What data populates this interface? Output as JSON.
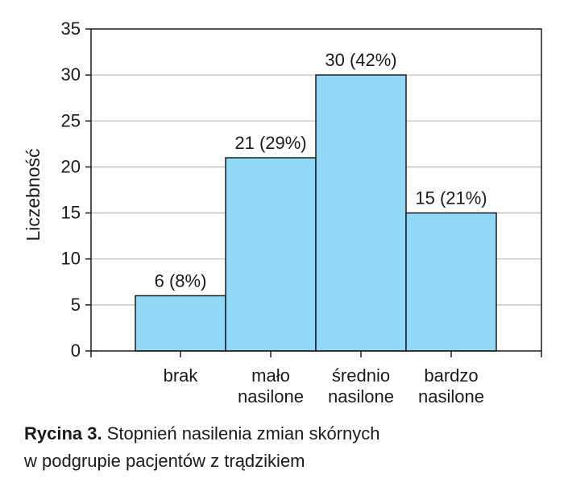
{
  "chart_data": {
    "type": "bar",
    "categories": [
      [
        "brak"
      ],
      [
        "mało",
        "nasilone"
      ],
      [
        "średnio",
        "nasilone"
      ],
      [
        "bardzo",
        "nasilone"
      ]
    ],
    "values": [
      6,
      21,
      30,
      15
    ],
    "data_labels": [
      "6 (8%)",
      "21 (29%)",
      "30 (42%)",
      "15 (21%)"
    ],
    "xlabel": "",
    "ylabel": "Liczebność",
    "ylim": [
      0,
      35
    ],
    "yticks": [
      0,
      5,
      10,
      15,
      20,
      25,
      30,
      35
    ],
    "grid": true,
    "bar_color": "#8fd9f7",
    "bar_edge_color": "#1a1a1a",
    "grid_color": "#bfbfbf"
  },
  "caption": {
    "lead": "Rycina 3.",
    "line1": "Stopnień nasilenia zmian skórnych",
    "line2": "w podgrupie pacjentów z trądzikiem"
  }
}
